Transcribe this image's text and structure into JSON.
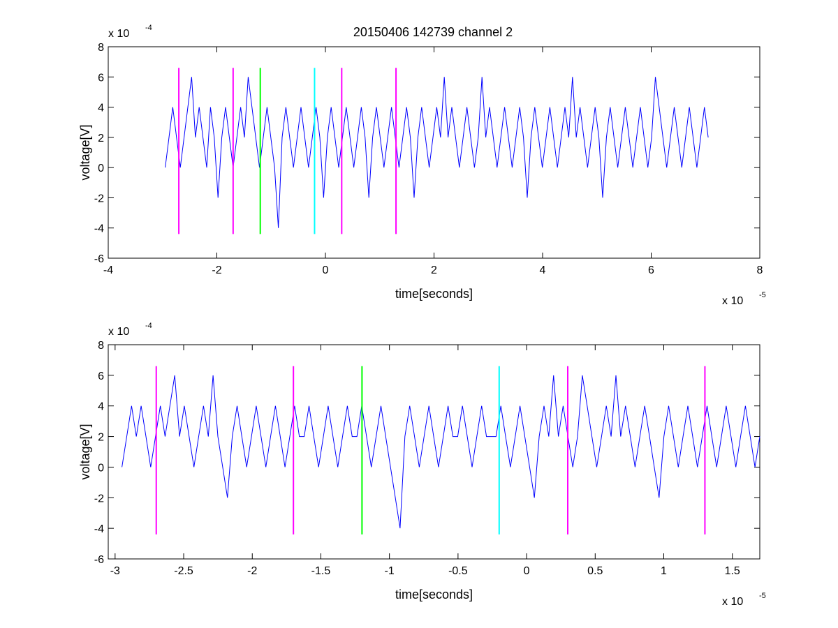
{
  "title": "20150406 142739 channel 2",
  "colors": {
    "signal": "#0000ff",
    "magenta": "#ff00ff",
    "green": "#00ff00",
    "cyan": "#00ffff",
    "axes": "#000000",
    "background": "#ffffff"
  },
  "chart_data": [
    {
      "type": "line",
      "title": "20150406 142739 channel 2",
      "xlabel": "time[seconds]",
      "ylabel": "voltage[V]",
      "x_exponent_label": "x 10",
      "x_exponent": "-5",
      "y_exponent_label": "x 10",
      "y_exponent": "-4",
      "xlim": [
        -4,
        8
      ],
      "ylim": [
        -6,
        8
      ],
      "x_ticks": [
        -4,
        -2,
        0,
        2,
        4,
        6,
        8
      ],
      "x_tick_labels": [
        "-4",
        "-2",
        "0",
        "2",
        "4",
        "6",
        "8"
      ],
      "y_ticks": [
        -6,
        -4,
        -2,
        0,
        2,
        4,
        6,
        8
      ],
      "y_tick_labels": [
        "-6",
        "-4",
        "-2",
        "0",
        "2",
        "4",
        "6",
        "8"
      ],
      "grid": false,
      "series": [
        {
          "color": "#0000ff",
          "x_range": [
            -2.95,
            7.05
          ],
          "levels": [
            0,
            2,
            4,
            2,
            0,
            2,
            4,
            6,
            2,
            4,
            2,
            0,
            4,
            2,
            -2,
            2,
            4,
            2,
            0,
            2,
            4,
            2,
            6,
            4,
            2,
            0,
            2,
            4,
            2,
            0,
            -4,
            2,
            4,
            2,
            0,
            2,
            4,
            2,
            0,
            2,
            4,
            2,
            -2,
            2,
            4,
            2,
            0,
            2,
            4,
            2,
            0,
            2,
            4,
            2,
            -2,
            2,
            4,
            2,
            0,
            2,
            4,
            2,
            0,
            2,
            4,
            2,
            -2,
            2,
            4,
            2,
            0,
            2,
            4,
            2,
            6,
            2,
            4,
            2,
            0,
            2,
            4,
            2,
            0,
            2,
            6,
            2,
            4,
            2,
            0,
            2,
            4,
            2,
            0,
            2,
            4,
            2,
            -2,
            2,
            4,
            2,
            0,
            2,
            4,
            2,
            0,
            2,
            4,
            2,
            6,
            2,
            4,
            2,
            0,
            2,
            4,
            2,
            -2,
            2,
            4,
            2,
            0,
            2,
            4,
            2,
            0,
            2,
            4,
            2,
            0,
            2,
            6,
            4,
            2,
            0,
            2,
            4,
            2,
            0,
            2,
            4,
            2,
            0,
            2,
            4,
            2
          ]
        }
      ],
      "markers": [
        {
          "x": -2.7,
          "color": "#ff00ff",
          "y_range": [
            -4.4,
            6.6
          ]
        },
        {
          "x": -1.7,
          "color": "#ff00ff",
          "y_range": [
            -4.4,
            6.6
          ]
        },
        {
          "x": -1.2,
          "color": "#00ff00",
          "y_range": [
            -4.4,
            6.6
          ]
        },
        {
          "x": -0.2,
          "color": "#00ffff",
          "y_range": [
            -4.4,
            6.6
          ]
        },
        {
          "x": 0.3,
          "color": "#ff00ff",
          "y_range": [
            -4.4,
            6.6
          ]
        },
        {
          "x": 1.3,
          "color": "#ff00ff",
          "y_range": [
            -4.4,
            6.6
          ]
        }
      ]
    },
    {
      "type": "line",
      "title": "",
      "xlabel": "time[seconds]",
      "ylabel": "voltage[V]",
      "x_exponent_label": "x 10",
      "x_exponent": "-5",
      "y_exponent_label": "x 10",
      "y_exponent": "-4",
      "xlim": [
        -3.05,
        1.7
      ],
      "ylim": [
        -6,
        8
      ],
      "x_ticks": [
        -3,
        -2.5,
        -2,
        -1.5,
        -1,
        -0.5,
        0,
        0.5,
        1,
        1.5
      ],
      "x_tick_labels": [
        "-3",
        "-2.5",
        "-2",
        "-1.5",
        "-1",
        "-0.5",
        "0",
        "0.5",
        "1",
        "1.5"
      ],
      "y_ticks": [
        -6,
        -4,
        -2,
        0,
        2,
        4,
        6,
        8
      ],
      "y_tick_labels": [
        "-6",
        "-4",
        "-2",
        "0",
        "2",
        "4",
        "6",
        "8"
      ],
      "grid": false,
      "series": [
        {
          "color": "#0000ff",
          "x_range": [
            -2.95,
            1.7
          ],
          "levels": [
            0,
            2,
            4,
            2,
            4,
            2,
            0,
            2,
            4,
            2,
            4,
            6,
            2,
            4,
            2,
            0,
            2,
            4,
            2,
            6,
            2,
            0,
            -2,
            2,
            4,
            2,
            0,
            2,
            4,
            2,
            0,
            2,
            4,
            2,
            0,
            2,
            4,
            2,
            2,
            4,
            2,
            0,
            2,
            4,
            2,
            0,
            2,
            4,
            2,
            2,
            4,
            2,
            0,
            2,
            4,
            2,
            0,
            -2,
            -4,
            2,
            4,
            2,
            0,
            2,
            4,
            2,
            0,
            2,
            4,
            2,
            2,
            4,
            2,
            0,
            2,
            4,
            2,
            2,
            2,
            4,
            2,
            0,
            2,
            4,
            2,
            0,
            -2,
            2,
            4,
            2,
            6,
            2,
            4,
            2,
            0,
            2,
            6,
            4,
            2,
            0,
            2,
            4,
            2,
            6,
            2,
            4,
            2,
            0,
            2,
            4,
            2,
            0,
            -2,
            2,
            4,
            2,
            0,
            2,
            4,
            2,
            0,
            2,
            4,
            2,
            0,
            2,
            4,
            2,
            0,
            2,
            4,
            2,
            0,
            2
          ]
        }
      ],
      "markers": [
        {
          "x": -2.7,
          "color": "#ff00ff",
          "y_range": [
            -4.4,
            6.6
          ]
        },
        {
          "x": -1.7,
          "color": "#ff00ff",
          "y_range": [
            -4.4,
            6.6
          ]
        },
        {
          "x": -1.2,
          "color": "#00ff00",
          "y_range": [
            -4.4,
            6.6
          ]
        },
        {
          "x": -0.2,
          "color": "#00ffff",
          "y_range": [
            -4.4,
            6.6
          ]
        },
        {
          "x": 0.3,
          "color": "#ff00ff",
          "y_range": [
            -4.4,
            6.6
          ]
        },
        {
          "x": 1.3,
          "color": "#ff00ff",
          "y_range": [
            -4.4,
            6.6
          ]
        }
      ]
    }
  ]
}
